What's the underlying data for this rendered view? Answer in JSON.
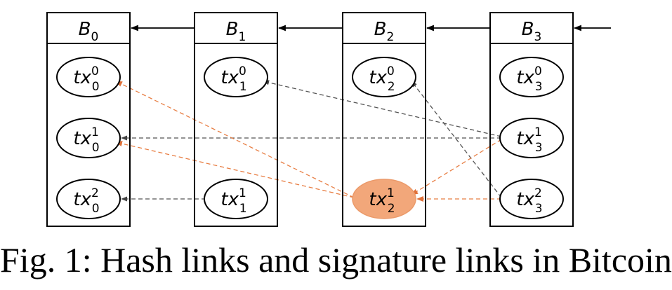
{
  "blocks": [
    {
      "main": "B",
      "sub": "0",
      "txs": [
        {
          "main": "tx",
          "sub": "0",
          "sup": "0",
          "highlighted": false
        },
        {
          "main": "tx",
          "sub": "0",
          "sup": "1",
          "highlighted": false
        },
        {
          "main": "tx",
          "sub": "0",
          "sup": "2",
          "highlighted": false
        }
      ]
    },
    {
      "main": "B",
      "sub": "1",
      "txs": [
        {
          "main": "tx",
          "sub": "1",
          "sup": "0",
          "highlighted": false
        },
        null,
        {
          "main": "tx",
          "sub": "1",
          "sup": "1",
          "highlighted": false
        }
      ]
    },
    {
      "main": "B",
      "sub": "2",
      "txs": [
        {
          "main": "tx",
          "sub": "2",
          "sup": "0",
          "highlighted": false
        },
        null,
        {
          "main": "tx",
          "sub": "2",
          "sup": "1",
          "highlighted": true
        }
      ]
    },
    {
      "main": "B",
      "sub": "3",
      "txs": [
        {
          "main": "tx",
          "sub": "3",
          "sup": "0",
          "highlighted": false
        },
        {
          "main": "tx",
          "sub": "3",
          "sup": "1",
          "highlighted": false
        },
        {
          "main": "tx",
          "sub": "3",
          "sup": "2",
          "highlighted": false
        }
      ]
    }
  ],
  "block_links": [
    {
      "from": 1,
      "to": 0
    },
    {
      "from": 2,
      "to": 1
    },
    {
      "from": 3,
      "to": 2
    },
    {
      "from": "incoming",
      "to": 3
    }
  ],
  "tx_links": [
    {
      "from": [
        3,
        1
      ],
      "to": [
        1,
        0
      ],
      "kind": "hash"
    },
    {
      "from": [
        3,
        1
      ],
      "to": [
        0,
        1
      ],
      "kind": "hash"
    },
    {
      "from": [
        3,
        2
      ],
      "to": [
        2,
        0
      ],
      "kind": "hash"
    },
    {
      "from": [
        1,
        2
      ],
      "to": [
        0,
        2
      ],
      "kind": "hash"
    },
    {
      "from": [
        2,
        2
      ],
      "to": [
        0,
        0
      ],
      "kind": "signature"
    },
    {
      "from": [
        2,
        2
      ],
      "to": [
        0,
        1
      ],
      "kind": "signature"
    },
    {
      "from": [
        3,
        1
      ],
      "to": [
        2,
        2
      ],
      "kind": "signature"
    },
    {
      "from": [
        3,
        2
      ],
      "to": [
        2,
        2
      ],
      "kind": "signature"
    }
  ],
  "colors": {
    "hash_link": "#555555",
    "signature_link": "#e87f45",
    "highlight_fill": "#f2a77a",
    "highlight_stroke": "#eb9a6a",
    "outline": "#000000"
  },
  "caption": "Fig. 1: Hash links and signature links in Bitcoin"
}
